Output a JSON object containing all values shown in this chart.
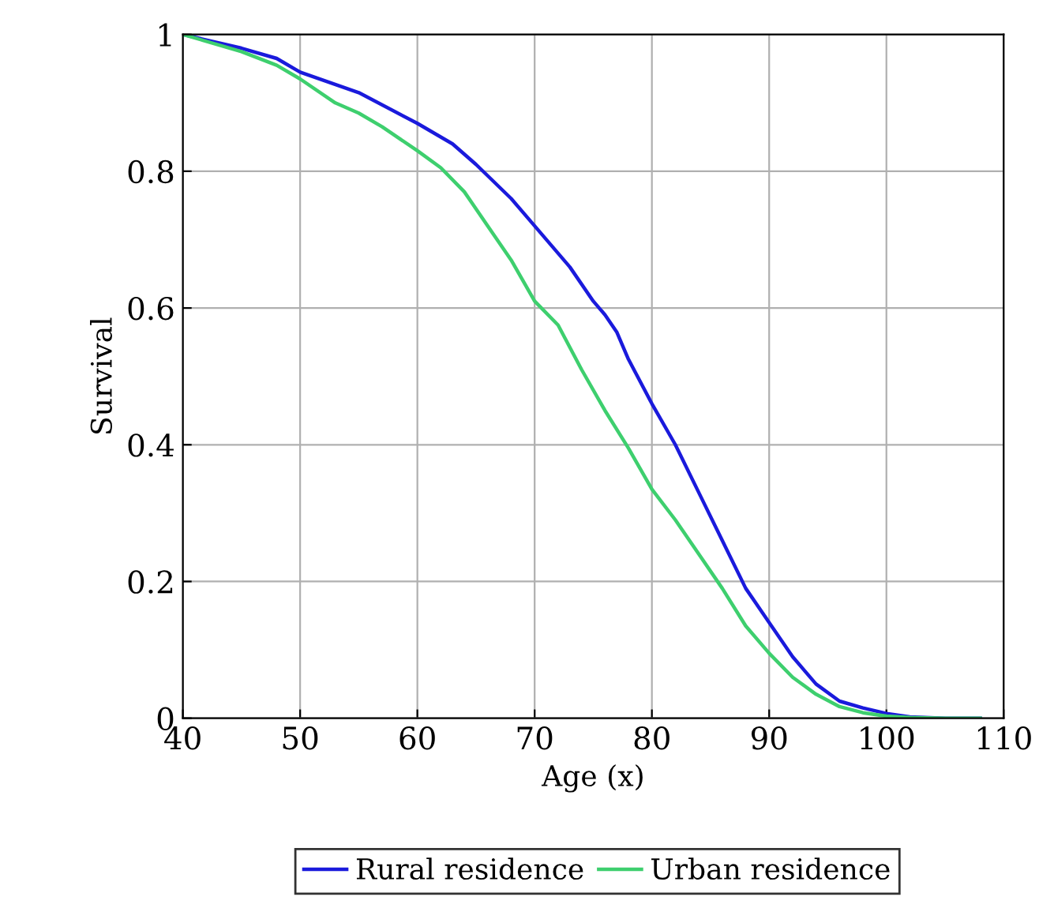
{
  "chart_data": {
    "type": "line",
    "xlabel": "Age (x)",
    "ylabel": "Survival",
    "xlim": [
      40,
      110
    ],
    "ylim": [
      0,
      1
    ],
    "xticks": [
      40,
      50,
      60,
      70,
      80,
      90,
      100,
      110
    ],
    "yticks": [
      0,
      0.2,
      0.4,
      0.6,
      0.8,
      1
    ],
    "grid": true,
    "legend": "bottom",
    "marker": "none",
    "line_style": "solid",
    "series": [
      {
        "name": "Rural residence",
        "color": "#1a1adc",
        "x": [
          40,
          45,
          48,
          50,
          55,
          60,
          63,
          65,
          68,
          70,
          73,
          75,
          76,
          77,
          78,
          80,
          82,
          84,
          86,
          88,
          90,
          92,
          94,
          96,
          98,
          100,
          102,
          105,
          108
        ],
        "values": [
          1.0,
          0.98,
          0.965,
          0.945,
          0.915,
          0.87,
          0.84,
          0.81,
          0.76,
          0.72,
          0.66,
          0.61,
          0.59,
          0.565,
          0.525,
          0.46,
          0.4,
          0.33,
          0.26,
          0.19,
          0.14,
          0.09,
          0.05,
          0.025,
          0.015,
          0.007,
          0.002,
          0,
          0
        ]
      },
      {
        "name": "Urban residence",
        "color": "#3ecf6e",
        "x": [
          40,
          45,
          48,
          50,
          53,
          55,
          57,
          60,
          62,
          64,
          66,
          68,
          70,
          72,
          74,
          76,
          78,
          80,
          82,
          84,
          86,
          88,
          90,
          92,
          94,
          96,
          98,
          100,
          102,
          105,
          108
        ],
        "values": [
          1.0,
          0.975,
          0.955,
          0.935,
          0.9,
          0.885,
          0.865,
          0.83,
          0.805,
          0.77,
          0.72,
          0.67,
          0.61,
          0.575,
          0.51,
          0.45,
          0.395,
          0.335,
          0.29,
          0.24,
          0.19,
          0.135,
          0.095,
          0.06,
          0.035,
          0.017,
          0.008,
          0.003,
          0.001,
          0,
          0
        ]
      }
    ]
  }
}
